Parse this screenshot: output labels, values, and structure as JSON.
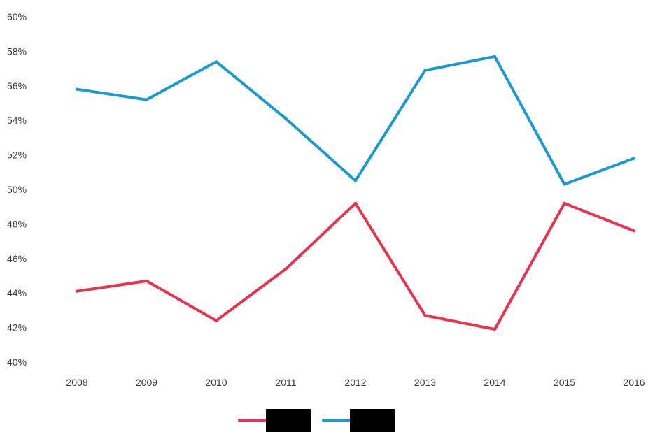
{
  "chart_data": {
    "type": "line",
    "title": "",
    "xlabel": "",
    "ylabel": "",
    "x": [
      "2008",
      "2009",
      "2010",
      "2011",
      "2012",
      "2013",
      "2014",
      "2015",
      "2016"
    ],
    "y_ticks": [
      "40%",
      "42%",
      "44%",
      "46%",
      "48%",
      "50%",
      "52%",
      "54%",
      "56%",
      "58%",
      "60%"
    ],
    "ylim": [
      40,
      60
    ],
    "grid": false,
    "legend_placement": "bottom-center",
    "legend_labels_redacted": true,
    "series": [
      {
        "color": "#e8334f",
        "values": [
          44.1,
          44.7,
          42.4,
          45.4,
          49.2,
          42.7,
          41.9,
          49.2,
          47.6
        ]
      },
      {
        "color": "#1b9ad2",
        "values": [
          55.8,
          55.2,
          57.4,
          54.1,
          50.5,
          56.9,
          57.7,
          50.3,
          51.8
        ]
      }
    ]
  }
}
